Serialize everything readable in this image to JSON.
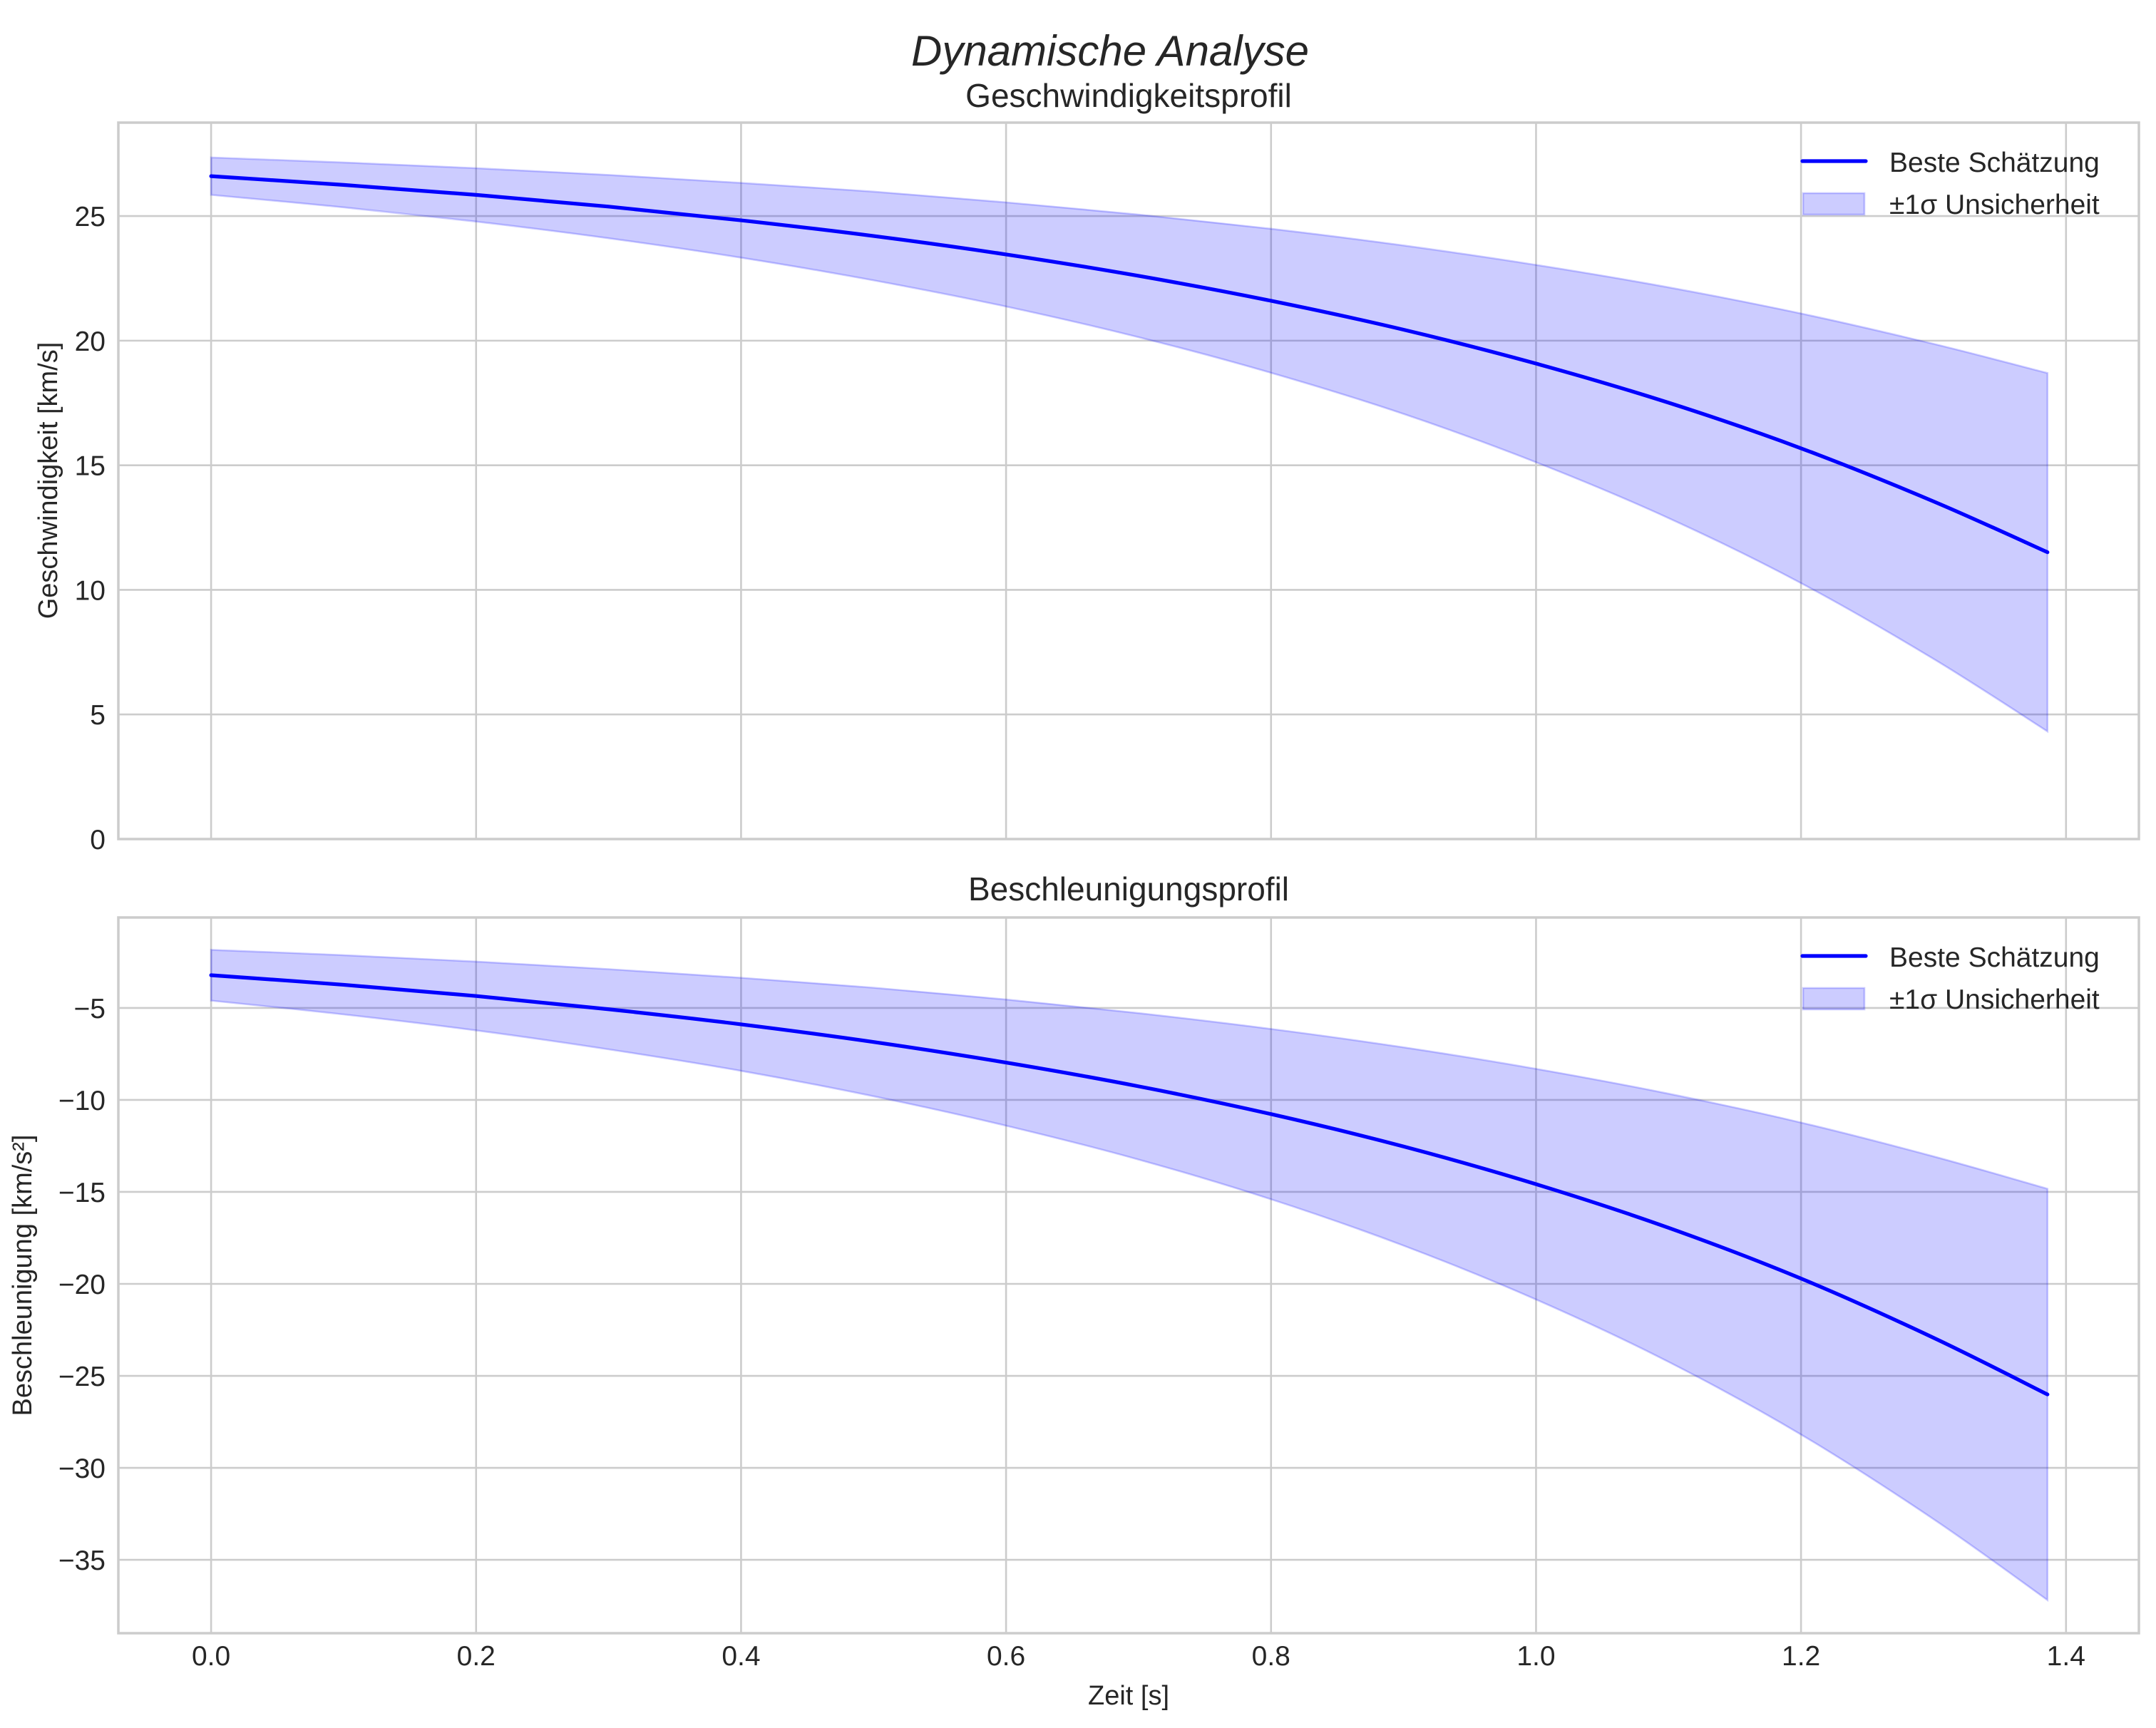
{
  "figure": {
    "suptitle": "Dynamische Analyse",
    "xlabel": "Zeit [s]"
  },
  "colors": {
    "line": "#0000ff",
    "band": "#0000ff",
    "grid": "#cccccc",
    "text": "#262626"
  },
  "legend": {
    "line_label": "Beste Schätzung",
    "band_label": "±1σ Unsicherheit"
  },
  "chart_data": [
    {
      "type": "line",
      "title": "Geschwindigkeitsprofil",
      "xlabel": "",
      "ylabel": "Geschwindigkeit [km/s]",
      "xlim": [
        -0.07,
        1.455
      ],
      "ylim": [
        0,
        28.75
      ],
      "grid": true,
      "legend_position": "upper right",
      "x_ticks": [
        "0.0",
        "0.2",
        "0.4",
        "0.6",
        "0.8",
        "1.0",
        "1.2",
        "1.4"
      ],
      "y_ticks": [
        {
          "value": 0,
          "label": "0"
        },
        {
          "value": 5,
          "label": "5"
        },
        {
          "value": 10,
          "label": "10"
        },
        {
          "value": 15,
          "label": "15"
        },
        {
          "value": 20,
          "label": "20"
        },
        {
          "value": 25,
          "label": "25"
        }
      ],
      "x": [
        0,
        0.1,
        0.2,
        0.3,
        0.4,
        0.5,
        0.6,
        0.7,
        0.8,
        0.9,
        1.0,
        1.1,
        1.2,
        1.3,
        1.386
      ],
      "series": [
        {
          "name": "Beste Schätzung",
          "kind": "line",
          "values": [
            26.6,
            26.25,
            25.85,
            25.38,
            24.83,
            24.2,
            23.46,
            22.6,
            21.6,
            20.44,
            19.08,
            17.51,
            15.68,
            13.55,
            11.51
          ]
        },
        {
          "name": "±1σ Unsicherheit (oben)",
          "kind": "band_upper",
          "values": [
            27.35,
            27.15,
            26.92,
            26.65,
            26.33,
            25.98,
            25.55,
            25.06,
            24.49,
            23.82,
            23.04,
            22.14,
            21.09,
            19.87,
            18.7
          ]
        },
        {
          "name": "±1σ Unsicherheit (unten)",
          "kind": "band_lower",
          "values": [
            25.85,
            25.35,
            24.78,
            24.11,
            23.33,
            22.42,
            21.37,
            20.14,
            18.71,
            17.06,
            15.12,
            12.88,
            10.27,
            7.23,
            4.32
          ]
        }
      ]
    },
    {
      "type": "line",
      "title": "Beschleunigungsprofil",
      "xlabel": "Zeit [s]",
      "ylabel": "Beschleunigung [km/s²]",
      "xlim": [
        -0.07,
        1.455
      ],
      "ylim": [
        -38.99,
        -0.08
      ],
      "grid": true,
      "legend_position": "upper right",
      "x_ticks": [
        "0.0",
        "0.2",
        "0.4",
        "0.6",
        "0.8",
        "1.0",
        "1.2",
        "1.4"
      ],
      "y_ticks": [
        {
          "value": -5,
          "label": "−5"
        },
        {
          "value": -10,
          "label": "−10"
        },
        {
          "value": -15,
          "label": "−15"
        },
        {
          "value": -20,
          "label": "−20"
        },
        {
          "value": -25,
          "label": "−25"
        },
        {
          "value": -30,
          "label": "−30"
        },
        {
          "value": -35,
          "label": "−35"
        }
      ],
      "x": [
        0,
        0.1,
        0.2,
        0.3,
        0.4,
        0.5,
        0.6,
        0.7,
        0.8,
        0.9,
        1.0,
        1.1,
        1.2,
        1.3,
        1.386
      ],
      "series": [
        {
          "name": "Beste Schätzung",
          "kind": "line",
          "values": [
            -3.22,
            -3.74,
            -4.35,
            -5.07,
            -5.89,
            -6.85,
            -7.97,
            -9.26,
            -10.77,
            -12.53,
            -14.58,
            -16.95,
            -19.71,
            -22.93,
            -26.01
          ]
        },
        {
          "name": "±1σ Unsicherheit (oben)",
          "kind": "band_upper",
          "values": [
            -1.84,
            -2.13,
            -2.48,
            -2.89,
            -3.36,
            -3.9,
            -4.54,
            -5.28,
            -6.14,
            -7.14,
            -8.31,
            -9.66,
            -11.23,
            -13.07,
            -14.83
          ]
        },
        {
          "name": "±1σ Unsicherheit (unten)",
          "kind": "band_lower",
          "values": [
            -4.6,
            -5.35,
            -6.22,
            -7.25,
            -8.42,
            -9.8,
            -11.4,
            -13.24,
            -15.4,
            -17.92,
            -20.85,
            -24.24,
            -28.19,
            -32.79,
            -37.19
          ]
        }
      ]
    }
  ]
}
